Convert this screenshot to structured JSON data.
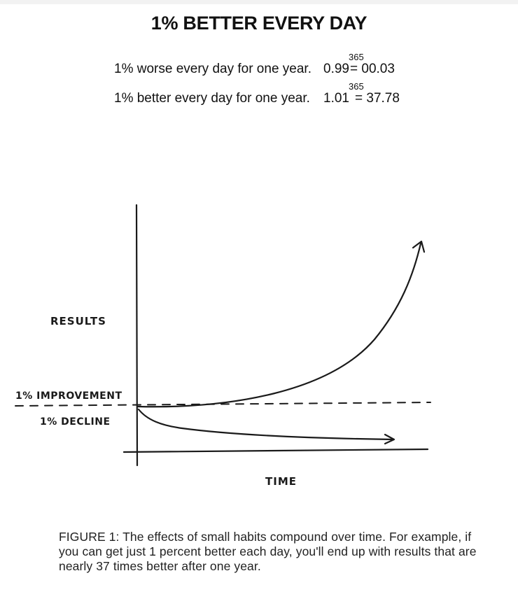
{
  "title": "1% BETTER EVERY DAY",
  "equations": [
    {
      "text": "1% worse every day for one year.",
      "base": "0.99",
      "exponent": "365",
      "result": "= 00.03"
    },
    {
      "text": "1% better every day for one year.",
      "base": "1.01",
      "exponent": "365",
      "result": "= 37.78"
    }
  ],
  "diagram": {
    "y_label": "RESULTS",
    "x_label": "TIME",
    "improvement_label": "1% IMPROVEMENT",
    "decline_label": "1% DECLINE",
    "line_color": "#1a1a1a"
  },
  "caption": "FIGURE 1: The effects of small habits compound over time. For example, if you can get just 1 percent better each day, you'll end up with results that are nearly 37 times better after one year."
}
